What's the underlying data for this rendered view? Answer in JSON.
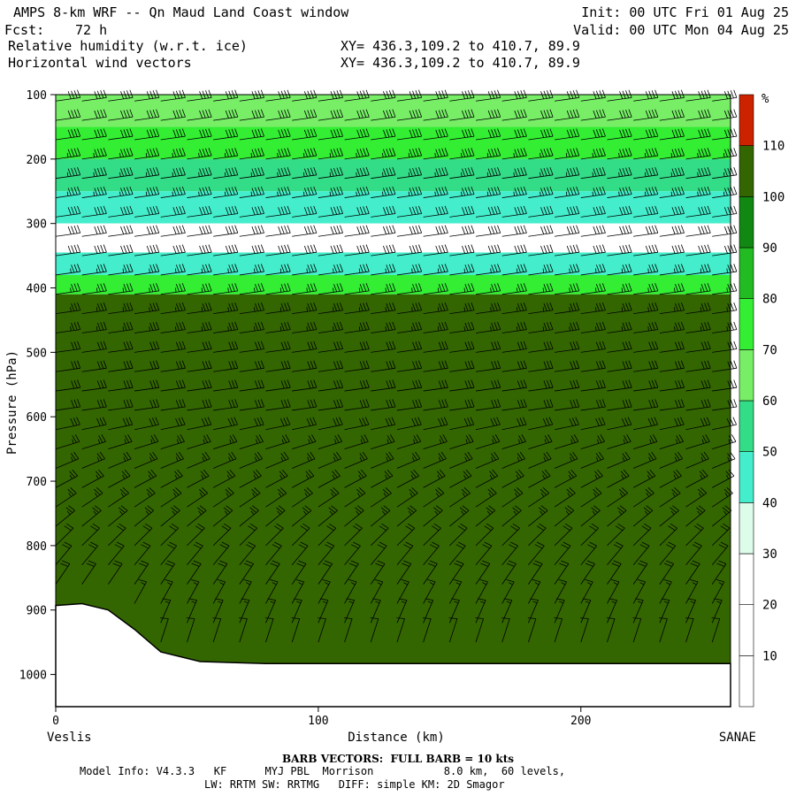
{
  "header": {
    "title": "AMPS 8-km WRF -- Qn Maud Land Coast window",
    "fcst_label": "Fcst:",
    "fcst_value": "72 h",
    "field1": "Relative humidity (w.r.t. ice)",
    "field2": "Horizontal wind vectors",
    "init": "Init: 00 UTC Fri 01 Aug 25",
    "valid": "Valid: 00 UTC Mon 04 Aug 25",
    "xy1": "XY= 436.3,109.2 to 410.7, 89.9",
    "xy2": "XY= 436.3,109.2 to 410.7, 89.9"
  },
  "chart_data": {
    "type": "heatmap",
    "xlabel": "Distance (km)",
    "ylabel": "Pressure (hPa)",
    "x_ticks": [
      0,
      100,
      200
    ],
    "x_tick_labels": [
      "0",
      "100",
      "200"
    ],
    "y_ticks": [
      100,
      200,
      300,
      400,
      500,
      600,
      700,
      800,
      900,
      1000
    ],
    "y_tick_labels": [
      "100",
      "200",
      "300",
      "400",
      "500",
      "600",
      "700",
      "800",
      "900",
      "1000"
    ],
    "xlim": [
      0,
      257
    ],
    "ylim": [
      1050,
      100
    ],
    "left_endpoint": "Veslis",
    "right_endpoint": "SANAE",
    "colorbar": {
      "unit": "%",
      "ticks": [
        "10",
        "20",
        "30",
        "40",
        "50",
        "60",
        "70",
        "80",
        "90",
        "100",
        "110"
      ],
      "levels": [
        0,
        10,
        20,
        30,
        40,
        50,
        60,
        70,
        80,
        90,
        100,
        110,
        120
      ],
      "colors": [
        "#ffffff",
        "#ffffff",
        "#ffffff",
        "#ddfdea",
        "#44eecc",
        "#33dd88",
        "#77ee66",
        "#33ee33",
        "#22bb22",
        "#118811",
        "#336600",
        "#cc2200"
      ]
    },
    "rh_bands": [
      {
        "p": 100,
        "rh": 60
      },
      {
        "p": 150,
        "rh": 70
      },
      {
        "p": 200,
        "rh": 50
      },
      {
        "p": 250,
        "rh": 40
      },
      {
        "p": 300,
        "rh": 20
      },
      {
        "p": 345,
        "rh": 40
      },
      {
        "p": 380,
        "rh": 70
      },
      {
        "p": 410,
        "rh": 100
      }
    ],
    "terrain": [
      {
        "x": 0,
        "p": 893
      },
      {
        "x": 10,
        "p": 890
      },
      {
        "x": 20,
        "p": 900
      },
      {
        "x": 30,
        "p": 930
      },
      {
        "x": 40,
        "p": 965
      },
      {
        "x": 55,
        "p": 980
      },
      {
        "x": 80,
        "p": 983
      },
      {
        "x": 150,
        "p": 983
      },
      {
        "x": 257,
        "p": 983
      }
    ],
    "wind": {
      "barb_columns_km": [
        0,
        10,
        20,
        30,
        40,
        50,
        60,
        70,
        80,
        90,
        100,
        110,
        120,
        130,
        140,
        150,
        160,
        170,
        180,
        190,
        200,
        210,
        220,
        230,
        240,
        250
      ],
      "speed_by_level_kts": [
        {
          "p": 100,
          "kts": 40
        },
        {
          "p": 250,
          "kts": 45
        },
        {
          "p": 400,
          "kts": 35
        },
        {
          "p": 550,
          "kts": 30
        },
        {
          "p": 700,
          "kts": 25
        },
        {
          "p": 850,
          "kts": 20
        },
        {
          "p": 950,
          "kts": 10
        }
      ]
    }
  },
  "footer": {
    "barb_note": "BARB VECTORS:  FULL BARB = 10 kts",
    "model_info_1": "Model Info: V4.3.3   KF      MYJ PBL  Morrison           8.0 km,  60 levels,",
    "model_info_2": "LW: RRTM SW: RRTMG   DIFF: simple KM: 2D Smagor"
  }
}
